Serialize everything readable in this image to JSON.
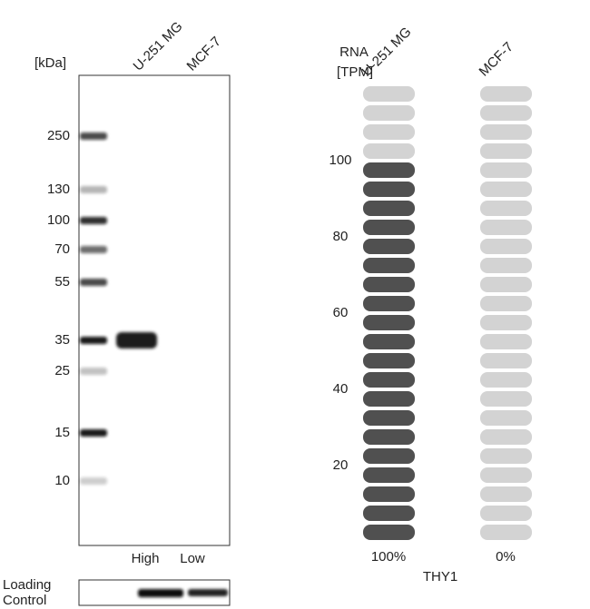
{
  "blot": {
    "unit_label": "[kDa]",
    "lanes": [
      "U-251 MG",
      "MCF-7"
    ],
    "markers": [
      250,
      130,
      100,
      70,
      55,
      35,
      25,
      15,
      10
    ],
    "levels": [
      "High",
      "Low"
    ],
    "loading_control": [
      "Loading",
      "Control"
    ]
  },
  "rna": {
    "header": [
      "RNA",
      "[TPM]"
    ],
    "ylim": [
      0,
      120
    ],
    "yticks": [
      20,
      40,
      60,
      80,
      100
    ],
    "step": 5,
    "dark_color": "#505050",
    "light_color": "#d3d3d3",
    "samples": [
      {
        "name": "U-251 MG",
        "tpm": 100,
        "label": "100%"
      },
      {
        "name": "MCF-7",
        "tpm": 0,
        "label": "0%"
      }
    ],
    "gene": "THY1"
  }
}
